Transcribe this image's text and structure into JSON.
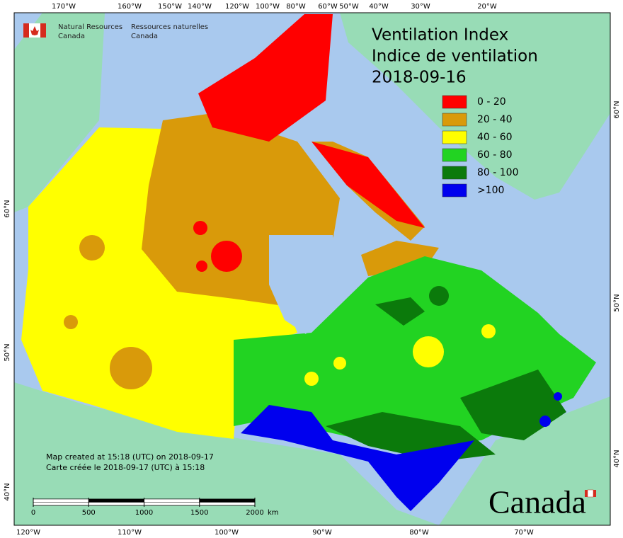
{
  "header": {
    "agency_en": [
      "Natural Resources",
      "Canada"
    ],
    "agency_fr": [
      "Ressources naturelles",
      "Canada"
    ]
  },
  "title": [
    "Ventilation Index",
    "Indice de ventilation",
    "2018-09-16"
  ],
  "legend": [
    {
      "label": "0 - 20",
      "color": "#ff0000"
    },
    {
      "label": "20 - 40",
      "color": "#d99a0a"
    },
    {
      "label": "40 - 60",
      "color": "#ffff00"
    },
    {
      "label": "60 - 80",
      "color": "#22d322"
    },
    {
      "label": "80 - 100",
      "color": "#0b7a0b"
    },
    {
      "label": ">100",
      "color": "#0000ee"
    }
  ],
  "top_axis": [
    "170°W",
    "160°W",
    "150°W",
    "140°W",
    "120°W",
    "100°W",
    "80°W",
    "60°W",
    "50°W",
    "40°W",
    "30°W",
    "20°W"
  ],
  "bottom_axis": [
    "120°W",
    "110°W",
    "100°W",
    "90°W",
    "80°W",
    "70°W"
  ],
  "left_axis": [
    "60°N",
    "50°N",
    "40°N"
  ],
  "right_axis": [
    "60°N",
    "50°N",
    "40°N"
  ],
  "credits": [
    "Map created at 15:18 (UTC) on 2018-09-17",
    "Carte créée le 2018-09-17 (UTC) à 15:18"
  ],
  "scale_bar": {
    "ticks": [
      0,
      500,
      1000,
      1500,
      2000
    ],
    "unit": "km"
  },
  "wordmark": "Canada"
}
